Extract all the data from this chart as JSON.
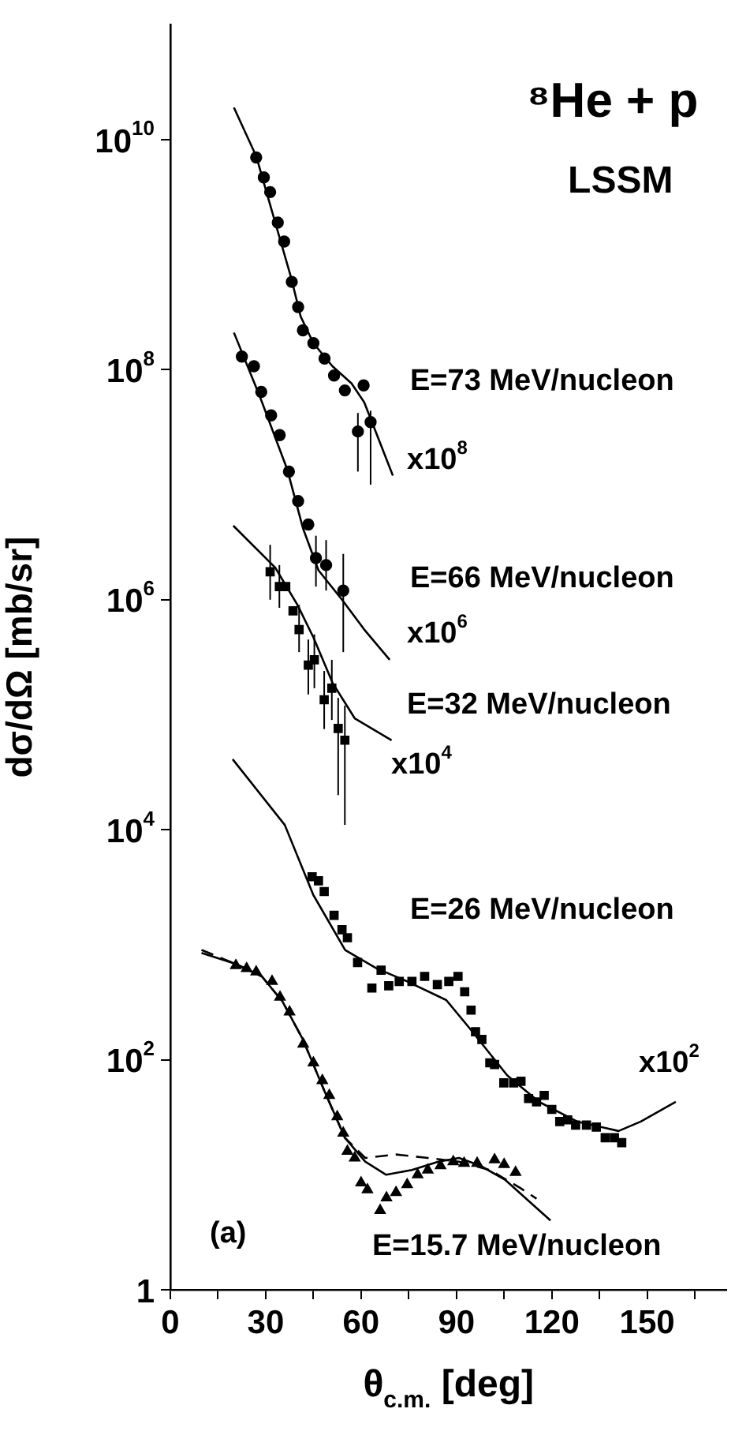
{
  "chart_data": {
    "type": "scatter",
    "title": "⁸He + p",
    "subtitle": "LSSM",
    "xlabel": "θ$_{c.m.}$ [deg]",
    "ylabel": "dσ/dΩ [mb/sr]",
    "log": "y",
    "grid": false,
    "legend": false,
    "xlim": [
      0,
      175
    ],
    "xticks": [
      0,
      {
        "value": 15,
        "label": null
      },
      30,
      {
        "value": 45,
        "label": null
      },
      60,
      {
        "value": 75,
        "label": null
      },
      90,
      {
        "value": 105,
        "label": null
      },
      120,
      {
        "value": 135,
        "label": null
      },
      150,
      {
        "value": 165,
        "label": null
      }
    ],
    "ylim": [
      1,
      100000000000
    ],
    "yticks": [
      1,
      {
        "value": 100,
        "label": "10$^{2}$"
      },
      {
        "value": 10000,
        "label": "10$^{4}$"
      },
      {
        "value": 1000000,
        "label": "10$^{6}$"
      },
      {
        "value": 100000000,
        "label": "10$^{8}$"
      },
      {
        "value": 10000000000,
        "label": "10$^{10}$"
      }
    ],
    "series": [
      {
        "type": "line",
        "color": "#000000",
        "marker": "none",
        "line_style": "solid",
        "x": [
          20,
          27,
          33,
          38,
          41,
          45,
          51,
          57,
          61,
          70
        ],
        "values": [
          19000000000,
          7200000000,
          1900000000,
          630000000,
          290000000,
          170000000,
          107000000,
          76000000,
          52000000,
          12000000
        ]
      },
      {
        "type": "scatter",
        "color": "#000000",
        "marker": "circle",
        "x": [
          27,
          29.4,
          31.4,
          33.8,
          35.8,
          38.2,
          40.2,
          41.7,
          45,
          48.5,
          51.5,
          54.9,
          60.8,
          59,
          63
        ],
        "values": [
          7000000000,
          4700000000,
          3500000000,
          1900000000,
          1300000000,
          580000000,
          350000000,
          220000000,
          170000000,
          125000000,
          89000000,
          66000000,
          73000000,
          29000000,
          35000000
        ],
        "errors": [
          null,
          null,
          null,
          null,
          null,
          null,
          null,
          null,
          null,
          null,
          null,
          null,
          null,
          [
            13000000,
            42000000
          ],
          [
            10000000,
            44000000
          ]
        ]
      },
      {
        "type": "line",
        "color": "#000000",
        "marker": "none",
        "line_style": "solid",
        "x": [
          20,
          28,
          36.8,
          41.7,
          46.6,
          54,
          61,
          69
        ],
        "values": [
          210000000,
          60000000,
          13500000,
          4200000,
          1800000,
          1000000,
          550000,
          300000
        ]
      },
      {
        "type": "scatter",
        "color": "#000000",
        "marker": "circle",
        "x": [
          22.5,
          26.3,
          28.6,
          31.7,
          34.4,
          37.3,
          40.2,
          43.4,
          45.8,
          49,
          54.4
        ],
        "values": [
          130000000,
          107000000,
          64000000,
          40000000,
          27000000,
          13000000,
          7200000,
          4500000,
          2300000,
          2000000,
          1200000
        ],
        "errors": [
          null,
          null,
          null,
          null,
          null,
          null,
          null,
          null,
          [
            1300000,
            3600000
          ],
          [
            1200000,
            3300000
          ],
          [
            350000,
            2500000
          ]
        ]
      },
      {
        "type": "line",
        "color": "#000000",
        "marker": "none",
        "line_style": "solid",
        "x": [
          19.8,
          33,
          40,
          45,
          51,
          58,
          69.6
        ],
        "values": [
          4400000,
          1900000,
          900000,
          470000,
          190000,
          93000,
          60000
        ]
      },
      {
        "type": "scatter",
        "color": "#000000",
        "marker": "square",
        "x": [
          31.4,
          34.3,
          36.3,
          38.6,
          40.5,
          43.4,
          45.3,
          48.4,
          50.8,
          52.8,
          54.9
        ],
        "values": [
          1750000,
          1300000,
          1300000,
          800000,
          550000,
          270000,
          300000,
          135000,
          170000,
          76000,
          60000
        ],
        "errors": [
          [
            1000000,
            3000000
          ],
          [
            850000,
            2000000
          ],
          null,
          null,
          [
            350000,
            900000
          ],
          [
            150000,
            450000
          ],
          [
            170000,
            500000
          ],
          [
            75000,
            240000
          ],
          [
            90000,
            300000
          ],
          [
            20000,
            140000
          ],
          [
            11000,
            120000
          ]
        ]
      },
      {
        "type": "line",
        "color": "#000000",
        "marker": "none",
        "line_style": "solid",
        "x": [
          19.6,
          36,
          45,
          55,
          65,
          74.5,
          86.8,
          94,
          106,
          116,
          128,
          141,
          148,
          159
        ],
        "values": [
          41000,
          11000,
          2700,
          900,
          620,
          480,
          330,
          190,
          73,
          43,
          29,
          24,
          29,
          43
        ]
      },
      {
        "type": "scatter",
        "color": "#000000",
        "marker": "square",
        "x": [
          44.6,
          46.6,
          48.4,
          51.5,
          54,
          55.7,
          58.9,
          63.4,
          66.3,
          68.7,
          72,
          76,
          80,
          84,
          87.6,
          90.5,
          92.6,
          94.6,
          96,
          98,
          100.5,
          102,
          104.9,
          108,
          110.3,
          112.7,
          115.2,
          117.6,
          120,
          122.5,
          125,
          127.5,
          130.9,
          134,
          136.8,
          139.7,
          142
        ],
        "values": [
          3900,
          3600,
          2900,
          1800,
          1350,
          1150,
          700,
          420,
          600,
          440,
          480,
          480,
          530,
          450,
          480,
          530,
          390,
          270,
          175,
          150,
          94,
          91,
          63,
          63,
          65,
          46,
          43,
          49,
          37,
          29,
          30,
          27,
          27,
          26,
          21,
          21,
          19
        ]
      },
      {
        "type": "line",
        "color": "#000000",
        "marker": "none",
        "line_style": "solid",
        "x": [
          9.8,
          20.6,
          28.8,
          35.3,
          41.7,
          48.4,
          54.9,
          61.3,
          67.9,
          76,
          84.3,
          90.8,
          97.5,
          105.4,
          113.7,
          119.6
        ],
        "values": [
          850,
          680,
          530,
          320,
          150,
          54,
          21,
          13,
          10,
          11,
          13,
          14,
          12,
          9,
          5.6,
          4
        ]
      },
      {
        "type": "line",
        "color": "#000000",
        "marker": "none",
        "line_style": "dashed",
        "x": [
          9.8,
          20.6,
          28.8,
          35.3,
          41.7,
          48.4,
          54.9,
          61.3,
          71,
          81,
          90.8,
          100.5,
          110.3,
          115.2
        ],
        "values": [
          900,
          680,
          530,
          320,
          150,
          54,
          21,
          14,
          15,
          14,
          13,
          11,
          7.6,
          6.2
        ]
      },
      {
        "type": "scatter",
        "color": "#000000",
        "marker": "triangle",
        "x": [
          20.6,
          24,
          27,
          32,
          34.5,
          37.5,
          41.8,
          45,
          47.8,
          50,
          52.5,
          54.4,
          55.7,
          58,
          60,
          62,
          66,
          68,
          71,
          74.5,
          77.8,
          81,
          85,
          89,
          92.4,
          96.5,
          102,
          105,
          108.6
        ],
        "values": [
          660,
          620,
          580,
          480,
          350,
          260,
          137,
          94,
          66,
          49,
          32,
          23,
          16,
          14,
          8.5,
          7.4,
          4.9,
          6.3,
          7,
          8.2,
          10,
          11,
          12,
          13,
          12.6,
          12.6,
          13.5,
          12.3,
          10.5
        ]
      }
    ],
    "annotations": [
      "E=73 MeV/nucleon",
      "x10$^{8}$",
      "E=66 MeV/nucleon",
      "x10$^{6}$",
      "E=32 MeV/nucleon",
      "x10$^{4}$",
      "E=26 MeV/nucleon",
      "x10$^{2}$",
      "E=15.7 MeV/nucleon",
      "(a)"
    ]
  }
}
